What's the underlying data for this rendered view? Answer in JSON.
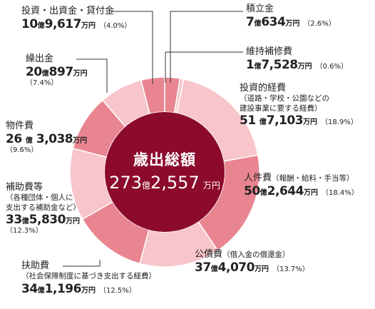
{
  "colors": {
    "center": "#8c0a2c",
    "ring_dark": "#e98591",
    "ring_light": "#f7c5ca",
    "leader": "#333333"
  },
  "center": {
    "title": "歳出総額",
    "value_big": "273",
    "value_unit1": "億",
    "value_big2": "2,557",
    "value_unit2": "万円"
  },
  "labels": {
    "tsumitate": {
      "name": "積立金",
      "big1": "7",
      "u1": "億",
      "big2": "634",
      "u2": "万円",
      "pct": "（2.6%）"
    },
    "ijihoshu": {
      "name": "維持補修費",
      "big1": "1",
      "u1": "億",
      "big2": "7,528",
      "u2": "万円",
      "pct": "（0.6%）"
    },
    "toushi": {
      "name": "投資的経費",
      "sub1": "（道路・学校・公園などの",
      "sub2": "建設事業に要する経費）",
      "big1": "51",
      "u1": "億",
      "big2": "7,103",
      "u2": "万円",
      "pct": "（18.9%）"
    },
    "jinken": {
      "name": "人件費",
      "sub": "（報酬・給料・手当等）",
      "big1": "50",
      "u1": "億",
      "big2": "2,644",
      "u2": "万円",
      "pct": "（18.4%）"
    },
    "kosai": {
      "name": "公債費",
      "sub": "（借入金の償還金）",
      "big1": "37",
      "u1": "億",
      "big2": "4,070",
      "u2": "万円",
      "pct": "（13.7%）"
    },
    "fujo": {
      "name": "扶助費",
      "sub": "（社会保障制度に基づき支出する経費）",
      "big1": "34",
      "u1": "億",
      "big2": "1,196",
      "u2": "万円",
      "pct": "（12.5%）"
    },
    "hojo": {
      "name": "補助費等",
      "sub1": "（各種団体・個人に",
      "sub2": "支出する補助金など）",
      "big1": "33",
      "u1": "億",
      "big2": "5,830",
      "u2": "万円",
      "pct": "（12.3%）"
    },
    "bukken": {
      "name": "物件費",
      "big1": "26",
      "u1": "億",
      "big2": "3,038",
      "u2": "万円",
      "pct": "（9.6%）"
    },
    "kuridashi": {
      "name": "繰出金",
      "big1": "20",
      "u1": "億",
      "big2": "897",
      "u2": "万円",
      "pct": "（7.4%）"
    },
    "toushikin": {
      "name": "投資・出資金・貸付金",
      "big1": "10",
      "u1": "億",
      "big2": "9,617",
      "u2": "万円",
      "pct": "（4.0%）"
    }
  },
  "chart_data": {
    "type": "pie",
    "variant": "donut",
    "title": "歳出総額 273億2,557万円",
    "unit": "万円",
    "slices": [
      {
        "label": "積立金",
        "value": 70634,
        "percent": 2.6,
        "color": "#e98591"
      },
      {
        "label": "維持補修費",
        "value": 17528,
        "percent": 0.6,
        "color": "#f7c5ca"
      },
      {
        "label": "投資的経費",
        "value": 517103,
        "percent": 18.9,
        "color": "#f7c5ca"
      },
      {
        "label": "人件費",
        "value": 502644,
        "percent": 18.4,
        "color": "#e98591"
      },
      {
        "label": "公債費",
        "value": 374070,
        "percent": 13.7,
        "color": "#f7c5ca"
      },
      {
        "label": "扶助費",
        "value": 341196,
        "percent": 12.5,
        "color": "#e98591"
      },
      {
        "label": "補助費等",
        "value": 335830,
        "percent": 12.3,
        "color": "#f7c5ca"
      },
      {
        "label": "物件費",
        "value": 263038,
        "percent": 9.6,
        "color": "#e98591"
      },
      {
        "label": "繰出金",
        "value": 200897,
        "percent": 7.4,
        "color": "#f7c5ca"
      },
      {
        "label": "投資・出資金・貸付金",
        "value": 109617,
        "percent": 4.0,
        "color": "#e98591"
      }
    ]
  }
}
